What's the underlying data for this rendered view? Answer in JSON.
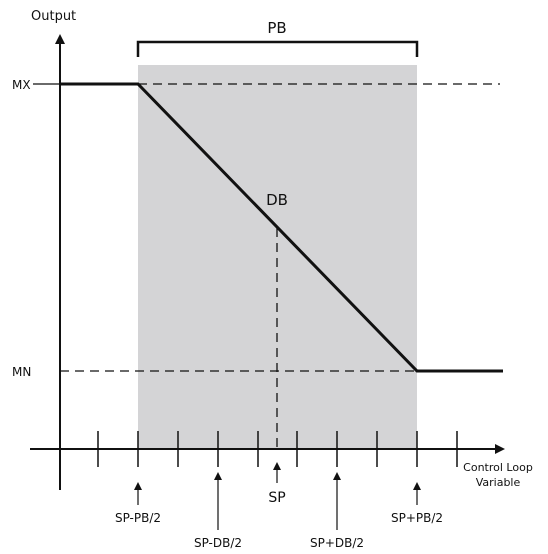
{
  "axes": {
    "y_label": "Output",
    "x_label_line1": "Control Loop",
    "x_label_line2": "Variable",
    "y_ticks": {
      "max": "MX",
      "min": "MN"
    }
  },
  "band_labels": {
    "proportional_band": "PB",
    "dead_band": "DB"
  },
  "x_markers": {
    "setpoint": "SP",
    "sp_minus_half_pb": "SP-PB/2",
    "sp_minus_half_db": "SP-DB/2",
    "sp_plus_half_db": "SP+DB/2",
    "sp_plus_half_pb": "SP+PB/2"
  },
  "colors": {
    "band_fill": "#d4d4d6",
    "ink": "#111111"
  }
}
